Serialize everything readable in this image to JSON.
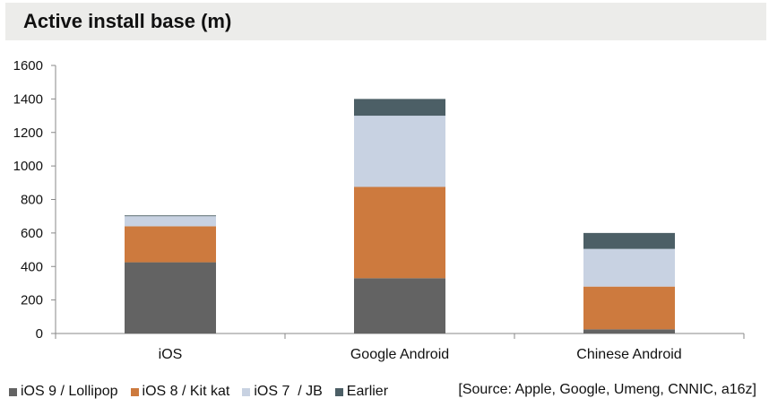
{
  "title": "Active install base (m)",
  "source": "[Source: Apple, Google, Umeng, CNNIC, a16z]",
  "colors": {
    "series_1": "#636363",
    "series_2": "#cd7a3e",
    "series_3": "#c8d2e2",
    "series_4": "#4c5f66",
    "axis": "#888888"
  },
  "chart_data": {
    "type": "bar",
    "stacked": true,
    "title": "Active install base (m)",
    "categories": [
      "iOS",
      "Google Android",
      "Chinese Android"
    ],
    "series": [
      {
        "name": "iOS 9 / Lollipop",
        "values": [
          425,
          330,
          25
        ]
      },
      {
        "name": "iOS 8 / Kit kat",
        "values": [
          215,
          545,
          255
        ]
      },
      {
        "name": "iOS 7  / JB",
        "values": [
          60,
          425,
          225
        ]
      },
      {
        "name": "Earlier",
        "values": [
          5,
          100,
          95
        ]
      }
    ],
    "ylim": [
      0,
      1600
    ],
    "yticks": [
      "0",
      "200",
      "400",
      "600",
      "800",
      "1000",
      "1200",
      "1400",
      "1600"
    ],
    "grid": false,
    "legend": "bottom"
  }
}
